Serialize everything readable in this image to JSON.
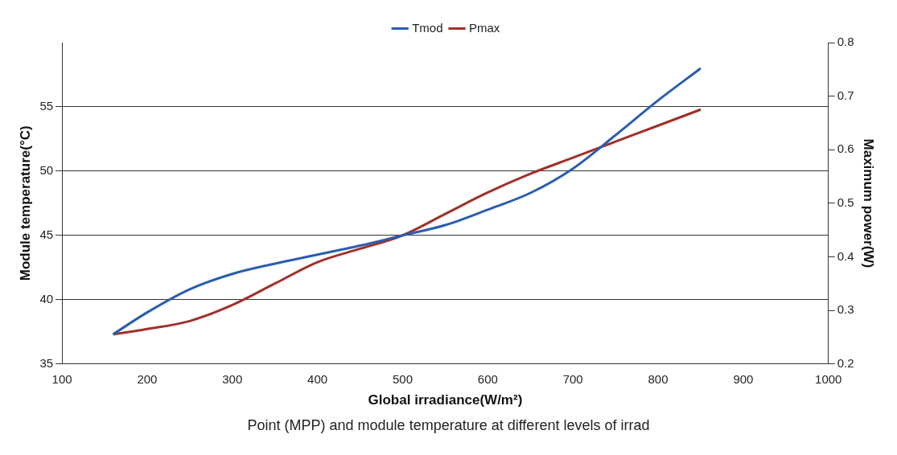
{
  "chart_data": {
    "type": "line",
    "xlabel": "Global irradiance(W/m²)",
    "ylabel": "Module temperature(°C)",
    "y2label": "Maximum power(W)",
    "xlim": [
      100,
      1000
    ],
    "xticks": [
      100,
      200,
      300,
      400,
      500,
      600,
      700,
      800,
      900,
      1000
    ],
    "ylim": [
      35,
      60
    ],
    "yticks": [
      35,
      40,
      45,
      50,
      55
    ],
    "y2lim": [
      0.2,
      0.8
    ],
    "y2ticks": [
      0.2,
      0.3,
      0.4,
      0.5,
      0.6,
      0.7,
      0.8
    ],
    "grid": "y",
    "legend": "top",
    "marker": "none",
    "line_style": "solid",
    "x": [
      160,
      200,
      250,
      300,
      350,
      400,
      450,
      500,
      550,
      600,
      650,
      700,
      750,
      800,
      850
    ],
    "series": [
      {
        "name": "Tmod",
        "color": "#2a5db0",
        "values": [
          37.3,
          39,
          40.8,
          42,
          42.8,
          43.5,
          44.2,
          45,
          45.8,
          47,
          48.3,
          50.2,
          52.8,
          55.5,
          58
        ]
      },
      {
        "name": "Pmax",
        "color": "#a0302a",
        "axis": "y2",
        "values": [
          0.255,
          0.265,
          0.28,
          0.31,
          0.35,
          0.39,
          0.415,
          0.44,
          0.48,
          0.52,
          0.555,
          0.585,
          0.615,
          0.645,
          0.675
        ]
      }
    ],
    "annotations": [
      "Point (MPP) and module temperature at different levels of irrad"
    ]
  }
}
